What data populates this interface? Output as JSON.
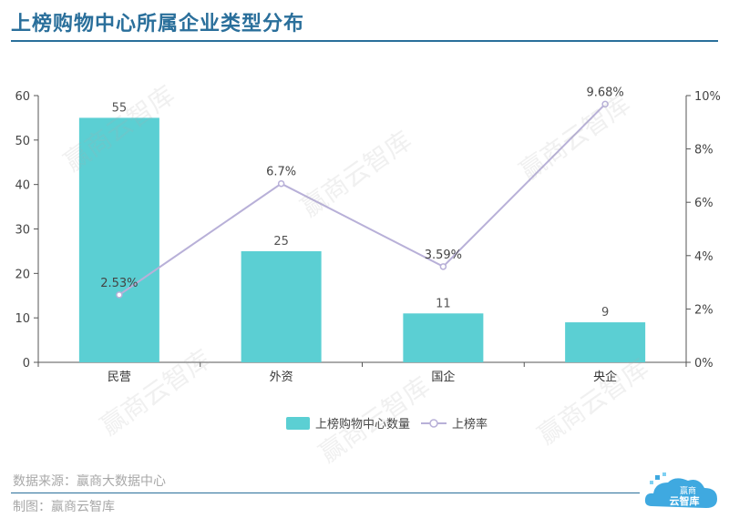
{
  "page": {
    "title": "上榜购物中心所属企业类型分布",
    "source": "数据来源：赢商大数据中心",
    "maker": "制图：赢商云智库",
    "logo_text": [
      "赢商",
      "云智库"
    ],
    "watermark": "赢商云智库",
    "colors": {
      "title": "#2a6f9b",
      "bar": "#5bcfd3",
      "line": "#b8b0d8",
      "axis": "#555555"
    }
  },
  "chart_data": {
    "type": "bar",
    "title": "上榜购物中心所属企业类型分布",
    "categories": [
      "民营",
      "外资",
      "国企",
      "央企"
    ],
    "series": [
      {
        "name": "上榜购物中心数量",
        "type": "bar",
        "axis": "left",
        "values": [
          55,
          25,
          11,
          9
        ],
        "labels": [
          "55",
          "25",
          "11",
          "9"
        ]
      },
      {
        "name": "上榜率",
        "type": "line",
        "axis": "right",
        "values": [
          2.53,
          6.7,
          3.59,
          9.68
        ],
        "labels": [
          "2.53%",
          "6.7%",
          "3.59%",
          "9.68%"
        ]
      }
    ],
    "ylim": [
      0,
      60
    ],
    "yticks": [
      "0",
      "10",
      "20",
      "30",
      "40",
      "50",
      "60"
    ],
    "y2lim": [
      0,
      10
    ],
    "y2ticks": [
      "0%",
      "2%",
      "4%",
      "6%",
      "8%",
      "10%"
    ],
    "legend": "bottom-center"
  }
}
